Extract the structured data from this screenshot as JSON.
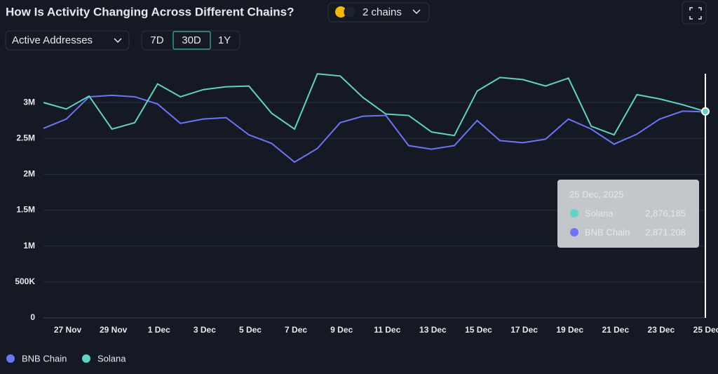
{
  "ui": {
    "chain_selector": "2 chains",
    "metric": "Active Addresses",
    "ranges": [
      "7D",
      "30D",
      "1Y"
    ],
    "active_range": 1
  },
  "chart_data": {
    "type": "line",
    "title": "How Is Activity Changing Across Different Chains?",
    "categories": [
      null,
      "27 Nov",
      null,
      "29 Nov",
      null,
      "1 Dec",
      null,
      "3 Dec",
      null,
      "5 Dec",
      null,
      "7 Dec",
      null,
      "9 Dec",
      null,
      "11 Dec",
      null,
      "13 Dec",
      null,
      "15 Dec",
      null,
      "17 Dec",
      null,
      "19 Dec",
      null,
      "21 Dec",
      null,
      "23 Dec",
      null,
      "25 Dec"
    ],
    "series": [
      {
        "name": "BNB Chain",
        "color": "#6b74f5",
        "values": [
          2640000,
          2770000,
          3080000,
          3100000,
          3080000,
          2980000,
          2710000,
          2770000,
          2790000,
          2550000,
          2430000,
          2170000,
          2360000,
          2720000,
          2810000,
          2820000,
          2400000,
          2350000,
          2400000,
          2750000,
          2470000,
          2440000,
          2490000,
          2770000,
          2630000,
          2420000,
          2560000,
          2770000,
          2880000,
          2871208
        ]
      },
      {
        "name": "Solana",
        "color": "#5fd3c4",
        "values": [
          3000000,
          2910000,
          3090000,
          2630000,
          2720000,
          3260000,
          3080000,
          3180000,
          3220000,
          3230000,
          2850000,
          2630000,
          3400000,
          3370000,
          3070000,
          2840000,
          2820000,
          2590000,
          2540000,
          3160000,
          3350000,
          3320000,
          3230000,
          3340000,
          2670000,
          2550000,
          3110000,
          3050000,
          2970000,
          2876185
        ]
      }
    ],
    "ylim": [
      0,
      3500000
    ],
    "yticks": [
      0,
      {
        "value": 500000,
        "label": "500K"
      },
      {
        "value": 1000000,
        "label": "1M"
      },
      {
        "value": 1500000,
        "label": "1.5M"
      },
      {
        "value": 2000000,
        "label": "2M"
      },
      {
        "value": 2500000,
        "label": "2.5M"
      },
      {
        "value": 3000000,
        "label": "3M"
      }
    ],
    "grid": true,
    "tooltip": {
      "title": "25 Dec, 2025",
      "rows": [
        {
          "name": "Solana",
          "value_label": "2,876,185"
        },
        {
          "name": "BNB Chain",
          "value_label": "2,871,208"
        }
      ]
    }
  }
}
